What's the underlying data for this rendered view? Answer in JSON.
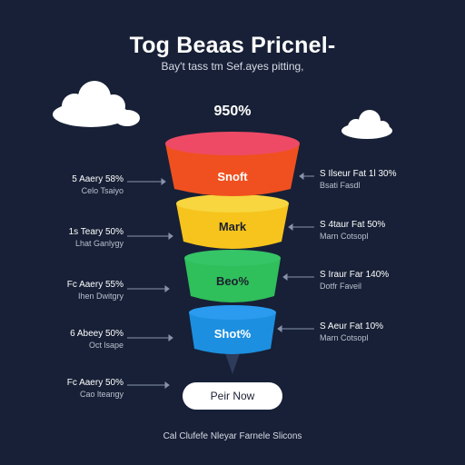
{
  "header": {
    "title": "Tog Beaas Pricnel-",
    "subtitle": "Bay't tass tm Sef.ayes pitting,"
  },
  "funnel": {
    "top_value": "950%",
    "stages": [
      {
        "label": "Snoft",
        "color": "#f0501f",
        "rim": "#ee4a66"
      },
      {
        "label": "Mark",
        "color": "#f6c41c",
        "rim": "#f7d640"
      },
      {
        "label": "Beo%",
        "color": "#2fbf5b",
        "rim": "#35c466"
      },
      {
        "label": "Shot%",
        "color": "#1c8fe0",
        "rim": "#2a9bef"
      }
    ]
  },
  "left_notes": [
    {
      "title": "5 Aaery 58%",
      "sub": "Celo Tsaiyo"
    },
    {
      "title": "1s Teary 50%",
      "sub": "Lhat Ganlygy"
    },
    {
      "title": "Fc Aaery 55%",
      "sub": "Ihen Dwitgry"
    },
    {
      "title": "6 Abeey 50%",
      "sub": "Oct lsape"
    },
    {
      "title": "Fc Aaery 50%",
      "sub": "Cao lteangy"
    }
  ],
  "right_notes": [
    {
      "title": "S Ilseur Fat 1l 30%",
      "sub": "Bsati Fasdl"
    },
    {
      "title": "S 4taur Fat 50%",
      "sub": "Marn Cotsopl"
    },
    {
      "title": "S Iraur Far 140%",
      "sub": "Dotfr Faveil"
    },
    {
      "title": "S Aeur Fat 10%",
      "sub": "Marn Cotsopl"
    }
  ],
  "cta": {
    "label": "Peir Now"
  },
  "footer": {
    "text": "Cal Clufefe Nleyar Farnele Slicons"
  }
}
